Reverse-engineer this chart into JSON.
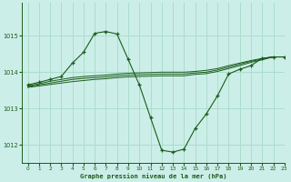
{
  "title": "Graphe pression niveau de la mer (hPa)",
  "bg_color": "#cceee8",
  "grid_color": "#aaddcc",
  "line_color": "#1a5c1a",
  "xlim": [
    -0.5,
    23
  ],
  "ylim": [
    1011.5,
    1015.9
  ],
  "yticks": [
    1012,
    1013,
    1014,
    1015
  ],
  "xticks": [
    0,
    1,
    2,
    3,
    4,
    5,
    6,
    7,
    8,
    9,
    10,
    11,
    12,
    13,
    14,
    15,
    16,
    17,
    18,
    19,
    20,
    21,
    22,
    23
  ],
  "series_main": {
    "x": [
      0,
      1,
      2,
      3,
      4,
      5,
      6,
      7,
      8,
      9,
      10,
      11,
      12,
      13,
      14,
      15,
      16,
      17,
      18,
      19,
      20,
      21,
      22,
      23
    ],
    "y": [
      1013.65,
      1013.72,
      1013.8,
      1013.88,
      1014.25,
      1014.55,
      1015.07,
      1015.12,
      1015.05,
      1014.35,
      1013.65,
      1012.75,
      1011.85,
      1011.8,
      1011.88,
      1012.45,
      1012.85,
      1013.35,
      1013.95,
      1014.08,
      1014.18,
      1014.38,
      1014.42,
      1014.42
    ]
  },
  "series_flat": [
    [
      1013.62,
      1013.68,
      1013.75,
      1013.8,
      1013.85,
      1013.88,
      1013.9,
      1013.92,
      1013.95,
      1013.97,
      1013.98,
      1013.99,
      1014.0,
      1014.0,
      1014.0,
      1014.02,
      1014.05,
      1014.1,
      1014.18,
      1014.25,
      1014.32,
      1014.38,
      1014.42,
      1014.42
    ],
    [
      1013.6,
      1013.65,
      1013.7,
      1013.75,
      1013.8,
      1013.83,
      1013.85,
      1013.87,
      1013.9,
      1013.92,
      1013.93,
      1013.94,
      1013.95,
      1013.95,
      1013.95,
      1013.98,
      1014.0,
      1014.06,
      1014.14,
      1014.22,
      1014.3,
      1014.36,
      1014.42,
      1014.42
    ],
    [
      1013.58,
      1013.62,
      1013.66,
      1013.7,
      1013.74,
      1013.77,
      1013.8,
      1013.82,
      1013.85,
      1013.87,
      1013.88,
      1013.89,
      1013.9,
      1013.9,
      1013.9,
      1013.94,
      1013.96,
      1014.02,
      1014.1,
      1014.18,
      1014.27,
      1014.34,
      1014.42,
      1014.42
    ]
  ]
}
